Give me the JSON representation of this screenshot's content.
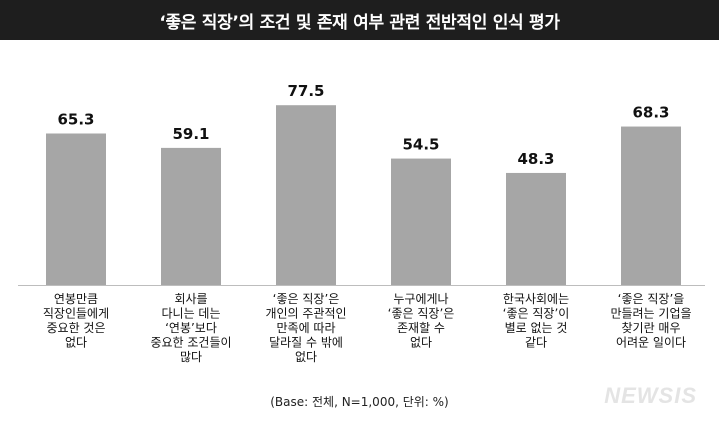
{
  "title": "‘좋은 직장’의 조건 및 존재 여부 관련 전반적인 인식 평가",
  "note": "(Base: 전체, N=1,000, 단위: %)",
  "watermark": "NEWSIS",
  "colors": {
    "bar": "#a6a6a6",
    "header_bg": "#1e1e1e",
    "axis": "#bdbdbd"
  },
  "chart_data": {
    "type": "bar",
    "title": "‘좋은 직장’의 조건 및 존재 여부 관련 전반적인 인식 평가",
    "xlabel": "",
    "ylabel": "",
    "ylim": [
      0,
      100
    ],
    "grid": false,
    "categories": [
      [
        "연봉만큼",
        "직장인들에게",
        "중요한 것은",
        "없다"
      ],
      [
        "회사를",
        "다니는 데는",
        "‘연봉’보다",
        "중요한 조건들이",
        "많다"
      ],
      [
        "‘좋은 직장’은",
        "개인의 주관적인",
        "만족에 따라",
        "달라질 수 밖에",
        "없다"
      ],
      [
        "누구에게나",
        "‘좋은 직장’은",
        "존재할 수",
        "없다"
      ],
      [
        "한국사회에는",
        "‘좋은 직장’이",
        "별로 없는 것",
        "같다"
      ],
      [
        "‘좋은 직장’을",
        "만들려는 기업을",
        "찾기란 매우",
        "어려운 일이다"
      ]
    ],
    "values": [
      65.3,
      59.1,
      77.5,
      54.5,
      48.3,
      68.3
    ],
    "value_labels": [
      "65.3",
      "59.1",
      "77.5",
      "54.5",
      "48.3",
      "68.3"
    ]
  }
}
